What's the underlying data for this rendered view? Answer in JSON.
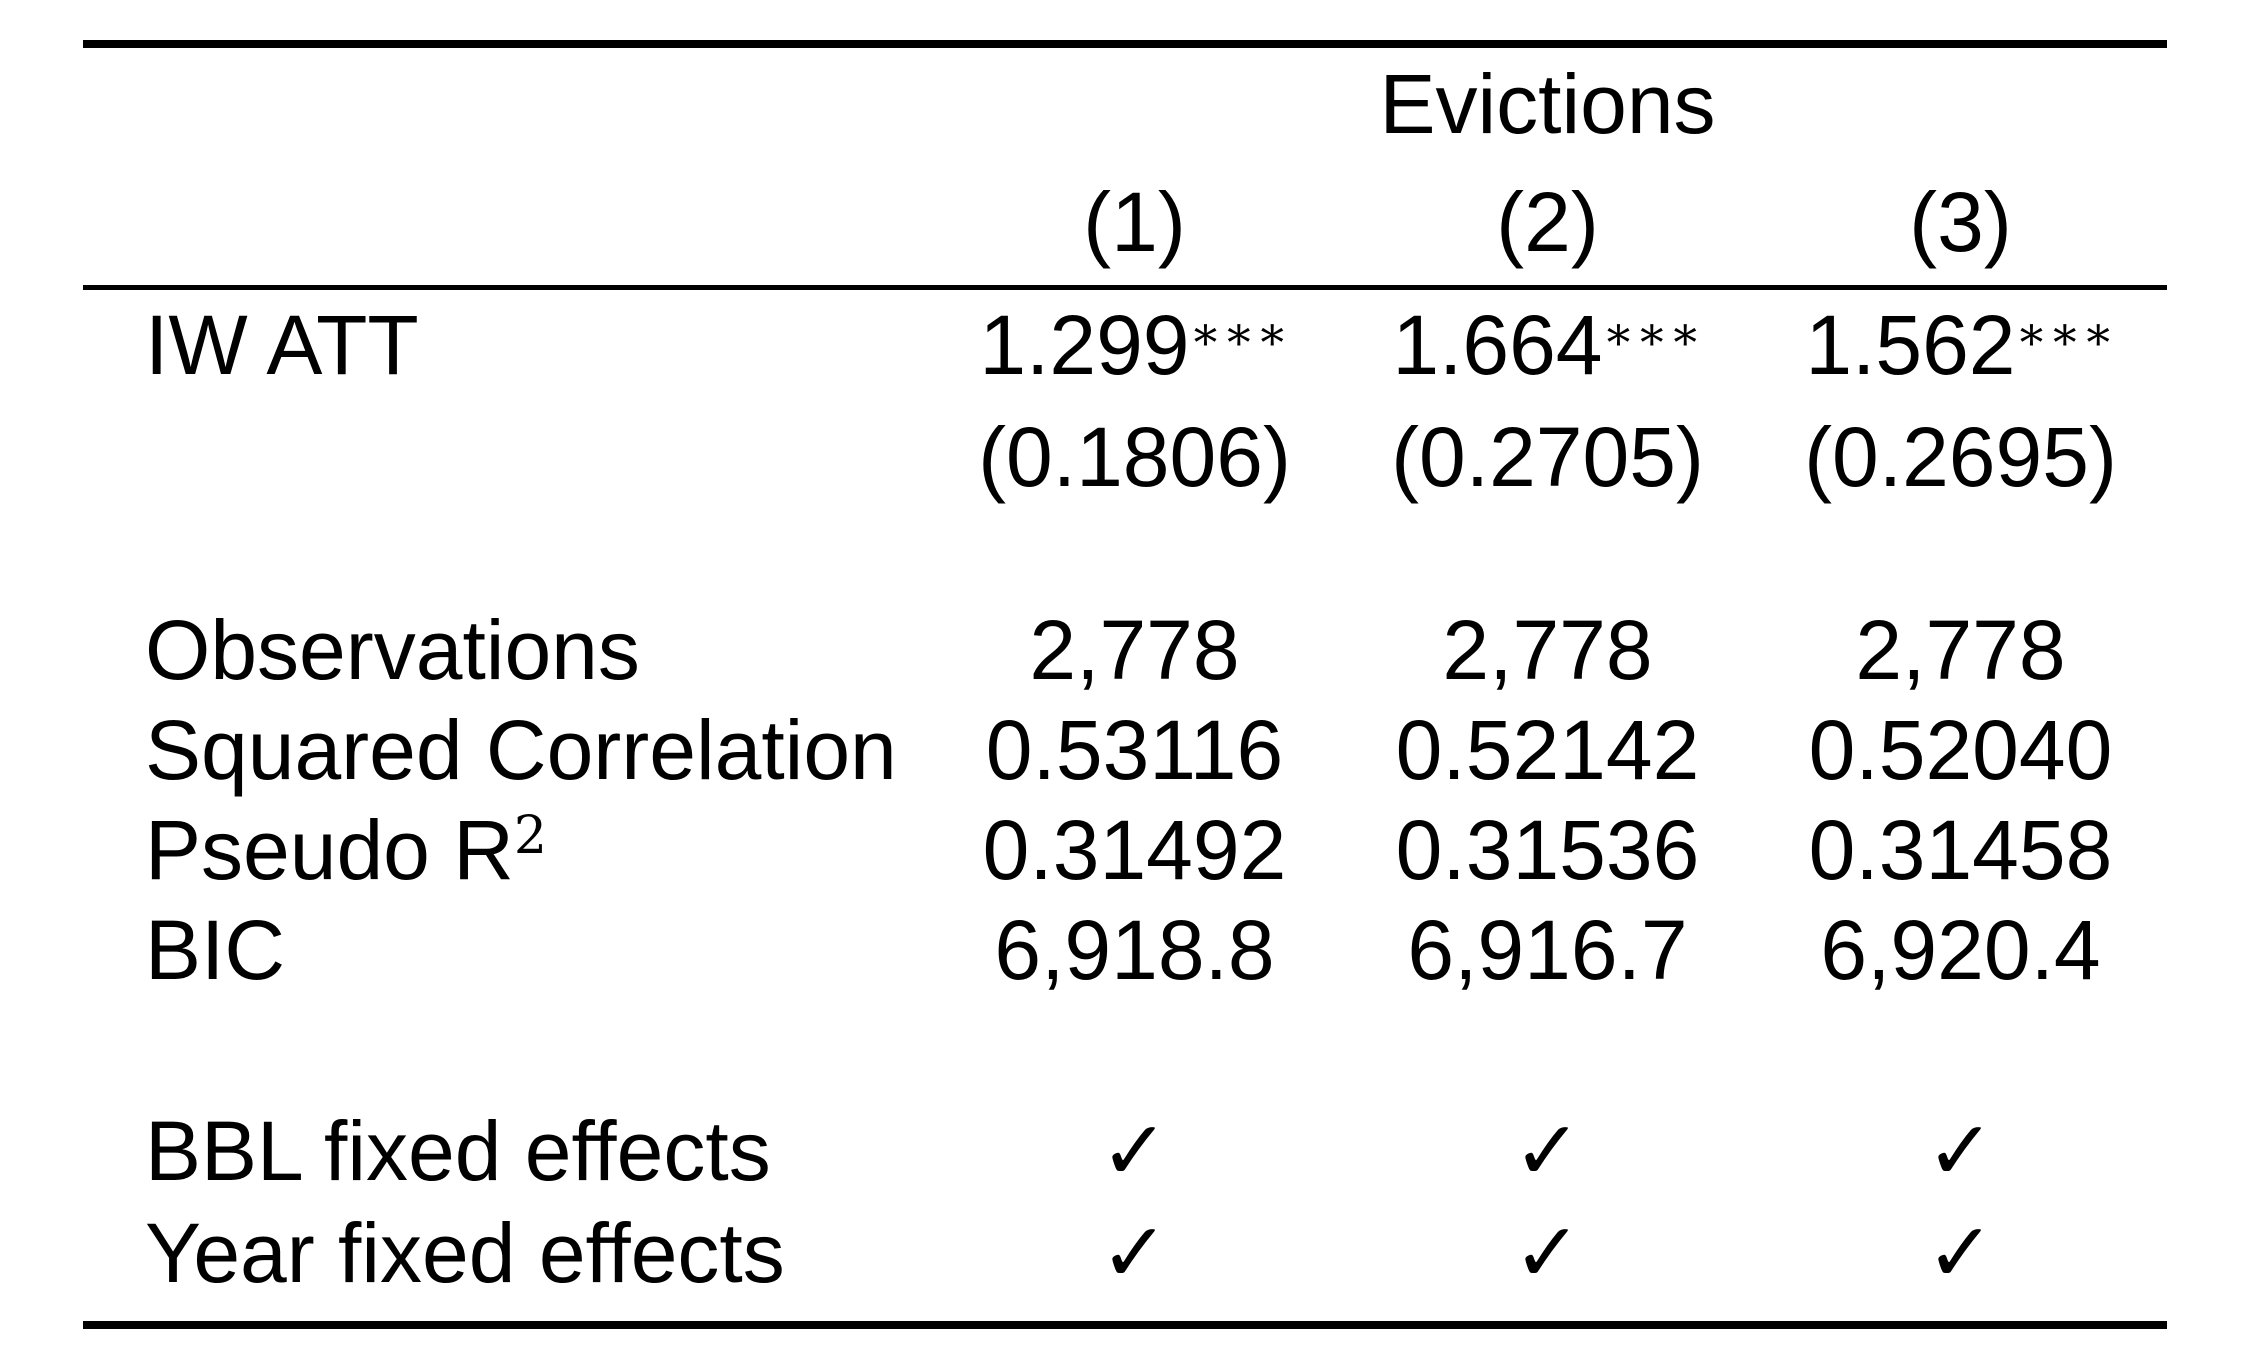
{
  "table": {
    "header": {
      "group_label": "Evictions",
      "columns": [
        "(1)",
        "(2)",
        "(3)"
      ]
    },
    "coefficients": [
      {
        "label": "IW ATT",
        "estimates": [
          "1.299",
          "1.664",
          "1.562"
        ],
        "stars": [
          "∗∗∗",
          "∗∗∗",
          "∗∗∗"
        ],
        "std_errors": [
          "(0.1806)",
          "(0.2705)",
          "(0.2695)"
        ]
      }
    ],
    "stats": [
      {
        "label": "Observations",
        "values": [
          "2,778",
          "2,778",
          "2,778"
        ]
      },
      {
        "label": "Squared Correlation",
        "values": [
          "0.53116",
          "0.52142",
          "0.52040"
        ]
      },
      {
        "label": "Pseudo R",
        "label_superscript": "2",
        "values": [
          "0.31492",
          "0.31536",
          "0.31458"
        ]
      },
      {
        "label": "BIC",
        "values": [
          "6,918.8",
          "6,916.7",
          "6,920.4"
        ]
      }
    ],
    "fixed_effects": [
      {
        "label": "BBL fixed effects",
        "values": [
          "✓",
          "✓",
          "✓"
        ]
      },
      {
        "label": "Year fixed effects",
        "values": [
          "✓",
          "✓",
          "✓"
        ]
      }
    ],
    "colors": {
      "text": "#000000",
      "rule": "#000000",
      "background": "#ffffff"
    }
  }
}
